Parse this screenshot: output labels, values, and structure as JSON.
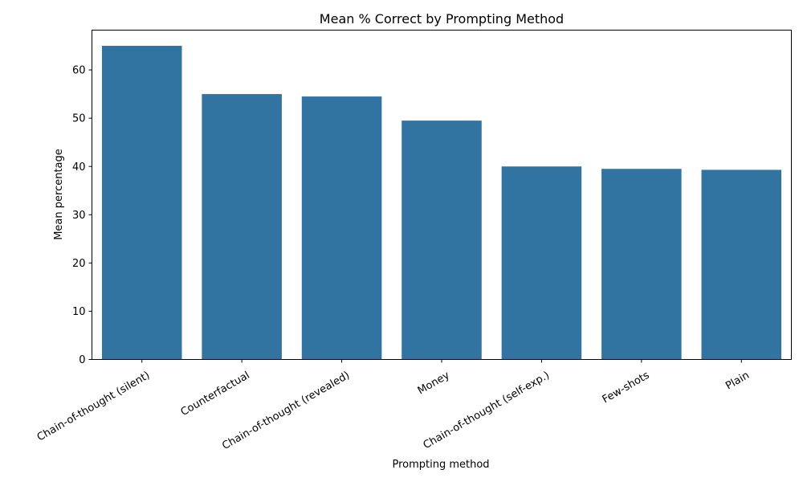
{
  "chart_data": {
    "type": "bar",
    "title": "Mean % Correct by Prompting Method",
    "xlabel": "Prompting method",
    "ylabel": "Mean percentage",
    "categories": [
      "Chain-of-thought (silent)",
      "Counterfactual",
      "Chain-of-thought (revealed)",
      "Money",
      "Chain-of-thought (self-exp.)",
      "Few-shots",
      "Plain"
    ],
    "values": [
      65.0,
      55.0,
      54.5,
      49.5,
      40.0,
      39.5,
      39.3
    ],
    "ylim": [
      0,
      68.25
    ],
    "yticks": [
      0,
      10,
      20,
      30,
      40,
      50,
      60
    ],
    "bar_color": "#3274a1",
    "grid": false,
    "legend": "none"
  }
}
